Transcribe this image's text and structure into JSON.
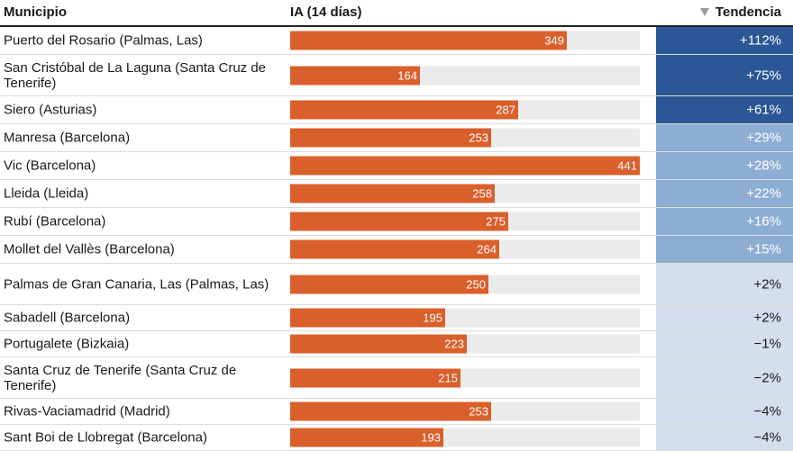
{
  "header": {
    "municipio": "Municipio",
    "ia": "IA (14 días)",
    "tendencia": "Tendencia"
  },
  "scale_max": 441,
  "colors": {
    "bar": "#d95f2b",
    "track": "#ebebeb",
    "trend_high": "#2b5797",
    "trend_mid": "#8eadd3",
    "trend_low": "#d3dfec"
  },
  "rows": [
    {
      "municipio": "Puerto del Rosario (Palmas, Las)",
      "ia": 349,
      "tendencia": "+112%",
      "level": "high"
    },
    {
      "municipio": "San Cristóbal de La Laguna (Santa Cruz de Tenerife)",
      "ia": 164,
      "tendencia": "+75%",
      "level": "high"
    },
    {
      "municipio": "Siero (Asturias)",
      "ia": 287,
      "tendencia": "+61%",
      "level": "high"
    },
    {
      "municipio": "Manresa (Barcelona)",
      "ia": 253,
      "tendencia": "+29%",
      "level": "mid"
    },
    {
      "municipio": "Vic (Barcelona)",
      "ia": 441,
      "tendencia": "+28%",
      "level": "mid"
    },
    {
      "municipio": "Lleida (Lleida)",
      "ia": 258,
      "tendencia": "+22%",
      "level": "mid"
    },
    {
      "municipio": "Rubí (Barcelona)",
      "ia": 275,
      "tendencia": "+16%",
      "level": "mid"
    },
    {
      "municipio": "Mollet del Vallès (Barcelona)",
      "ia": 264,
      "tendencia": "+15%",
      "level": "mid"
    },
    {
      "municipio": "Palmas de Gran Canaria, Las (Palmas, Las)",
      "ia": 250,
      "tendencia": "+2%",
      "level": "low"
    },
    {
      "municipio": "Sabadell (Barcelona)",
      "ia": 195,
      "tendencia": "+2%",
      "level": "low"
    },
    {
      "municipio": "Portugalete (Bizkaia)",
      "ia": 223,
      "tendencia": "−1%",
      "level": "low"
    },
    {
      "municipio": "Santa Cruz de Tenerife (Santa Cruz de Tenerife)",
      "ia": 215,
      "tendencia": "−2%",
      "level": "low"
    },
    {
      "municipio": "Rivas-Vaciamadrid (Madrid)",
      "ia": 253,
      "tendencia": "−4%",
      "level": "low"
    },
    {
      "municipio": "Sant Boi de Llobregat (Barcelona)",
      "ia": 193,
      "tendencia": "−4%",
      "level": "low"
    }
  ]
}
